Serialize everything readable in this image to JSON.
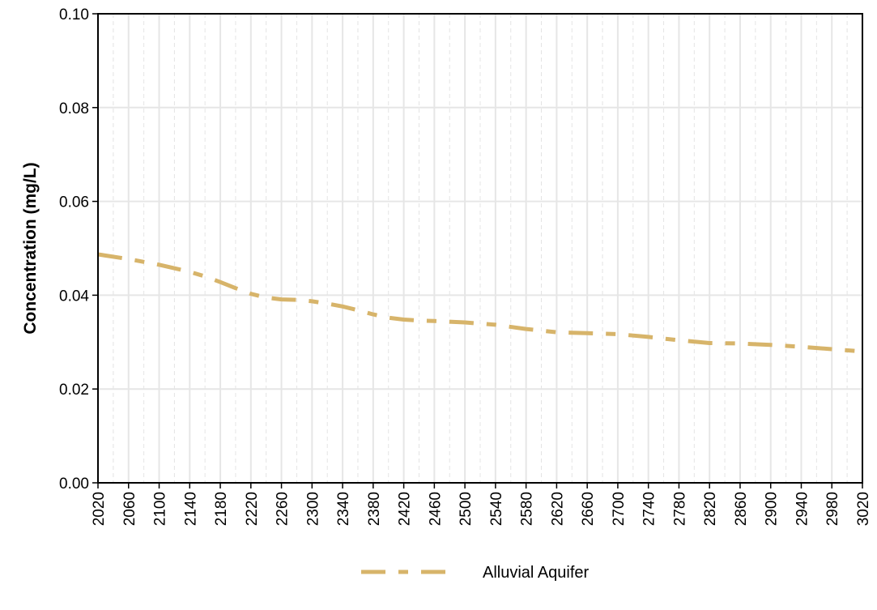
{
  "chart_data": {
    "type": "line",
    "title": "",
    "xlabel": "",
    "ylabel": "Concentration (mg/L)",
    "xlim": [
      2020,
      3020
    ],
    "ylim": [
      0,
      0.1
    ],
    "x_ticks": [
      "2020",
      "2060",
      "2100",
      "2140",
      "2180",
      "2220",
      "2260",
      "2300",
      "2340",
      "2380",
      "2420",
      "2460",
      "2500",
      "2540",
      "2580",
      "2620",
      "2660",
      "2700",
      "2740",
      "2780",
      "2820",
      "2860",
      "2900",
      "2940",
      "2980",
      "3020"
    ],
    "y_ticks": [
      "0.00",
      "0.02",
      "0.04",
      "0.06",
      "0.08",
      "0.10"
    ],
    "grid": true,
    "legend_position": "bottom",
    "series": [
      {
        "name": "Alluvial Aquifer",
        "color": "#d7b46a",
        "line_style": "dashdot",
        "x": [
          2020,
          2060,
          2100,
          2140,
          2160,
          2180,
          2200,
          2220,
          2240,
          2260,
          2280,
          2300,
          2320,
          2340,
          2360,
          2380,
          2400,
          2420,
          2440,
          2460,
          2500,
          2540,
          2580,
          2620,
          2660,
          2700,
          2740,
          2780,
          2820,
          2860,
          2900,
          2940,
          2980,
          3020
        ],
        "y": [
          0.0487,
          0.0477,
          0.0465,
          0.045,
          0.044,
          0.0428,
          0.0415,
          0.0403,
          0.0395,
          0.0391,
          0.039,
          0.0387,
          0.0382,
          0.0376,
          0.0368,
          0.0359,
          0.0352,
          0.0348,
          0.0346,
          0.0345,
          0.0342,
          0.0337,
          0.0328,
          0.0321,
          0.0319,
          0.0317,
          0.0311,
          0.0304,
          0.0298,
          0.0297,
          0.0294,
          0.029,
          0.0285,
          0.028
        ]
      }
    ]
  }
}
